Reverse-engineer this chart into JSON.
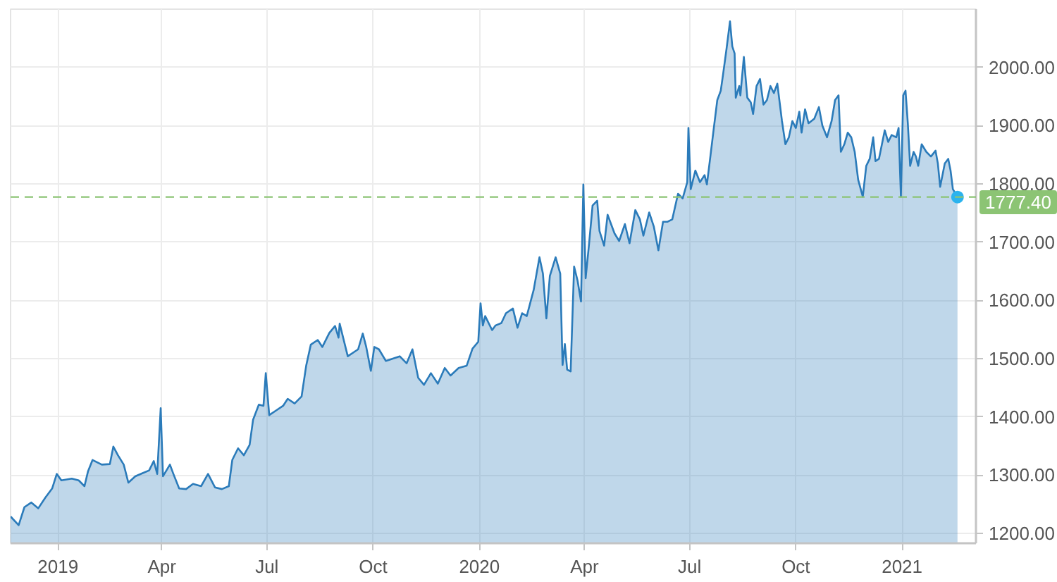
{
  "chart_data": {
    "type": "area",
    "xlim": [
      "2018-11-21",
      "2021-03-06"
    ],
    "ylim": [
      1183,
      2100
    ],
    "xticks": [
      {
        "value": "2019-01-01",
        "label": "2019"
      },
      {
        "value": "2019-04-01",
        "label": "Apr"
      },
      {
        "value": "2019-07-01",
        "label": "Jul"
      },
      {
        "value": "2019-10-01",
        "label": "Oct"
      },
      {
        "value": "2020-01-01",
        "label": "2020"
      },
      {
        "value": "2020-04-01",
        "label": "Apr"
      },
      {
        "value": "2020-07-01",
        "label": "Jul"
      },
      {
        "value": "2020-10-01",
        "label": "Oct"
      },
      {
        "value": "2021-01-01",
        "label": "2021"
      }
    ],
    "yticks": [
      {
        "value": 1200,
        "label": "1200.00"
      },
      {
        "value": 1300,
        "label": "1300.00"
      },
      {
        "value": 1400,
        "label": "1400.00"
      },
      {
        "value": 1500,
        "label": "1500.00"
      },
      {
        "value": 1600,
        "label": "1600.00"
      },
      {
        "value": 1700,
        "label": "1700.00"
      },
      {
        "value": 1800,
        "label": "1800.00"
      },
      {
        "value": 1900,
        "label": "1900.00"
      },
      {
        "value": 2000,
        "label": "2000.00"
      }
    ],
    "grid": true,
    "x": [
      "2018-11-21",
      "2018-11-28",
      "2018-12-03",
      "2018-12-09",
      "2018-12-15",
      "2018-12-21",
      "2018-12-27",
      "2018-12-31",
      "2019-01-04",
      "2019-01-13",
      "2019-01-19",
      "2019-01-24",
      "2019-01-27",
      "2019-01-31",
      "2019-02-08",
      "2019-02-15",
      "2019-02-18",
      "2019-02-22",
      "2019-02-27",
      "2019-03-03",
      "2019-03-09",
      "2019-03-15",
      "2019-03-21",
      "2019-03-25",
      "2019-03-28",
      "2019-03-31",
      "2019-04-02",
      "2019-04-08",
      "2019-04-11",
      "2019-04-16",
      "2019-04-22",
      "2019-04-28",
      "2019-05-05",
      "2019-05-11",
      "2019-05-17",
      "2019-05-23",
      "2019-05-29",
      "2019-06-01",
      "2019-06-06",
      "2019-06-11",
      "2019-06-16",
      "2019-06-19",
      "2019-06-24",
      "2019-06-28",
      "2019-06-30",
      "2019-07-03",
      "2019-07-09",
      "2019-07-15",
      "2019-07-19",
      "2019-07-25",
      "2019-07-31",
      "2019-08-04",
      "2019-08-08",
      "2019-08-14",
      "2019-08-18",
      "2019-08-24",
      "2019-08-29",
      "2019-09-01",
      "2019-09-02",
      "2019-09-09",
      "2019-09-15",
      "2019-09-18",
      "2019-09-22",
      "2019-09-25",
      "2019-09-29",
      "2019-10-02",
      "2019-10-06",
      "2019-10-12",
      "2019-10-18",
      "2019-10-24",
      "2019-10-30",
      "2019-11-04",
      "2019-11-09",
      "2019-11-14",
      "2019-11-20",
      "2019-11-26",
      "2019-12-02",
      "2019-12-07",
      "2019-12-14",
      "2019-12-21",
      "2019-12-26",
      "2019-12-31",
      "2020-01-02",
      "2020-01-04",
      "2020-01-06",
      "2020-01-12",
      "2020-01-15",
      "2020-01-20",
      "2020-01-24",
      "2020-01-30",
      "2020-02-03",
      "2020-02-07",
      "2020-02-11",
      "2020-02-17",
      "2020-02-22",
      "2020-02-25",
      "2020-02-28",
      "2020-03-02",
      "2020-03-07",
      "2020-03-11",
      "2020-03-13",
      "2020-03-15",
      "2020-03-17",
      "2020-03-20",
      "2020-03-23",
      "2020-03-26",
      "2020-03-29",
      "2020-03-31",
      "2020-04-02",
      "2020-04-05",
      "2020-04-08",
      "2020-04-12",
      "2020-04-14",
      "2020-04-18",
      "2020-04-21",
      "2020-04-27",
      "2020-05-01",
      "2020-05-06",
      "2020-05-10",
      "2020-05-15",
      "2020-05-19",
      "2020-05-22",
      "2020-05-27",
      "2020-05-31",
      "2020-06-04",
      "2020-06-08",
      "2020-06-12",
      "2020-06-16",
      "2020-06-21",
      "2020-06-25",
      "2020-06-29",
      "2020-06-30",
      "2020-07-02",
      "2020-07-06",
      "2020-07-10",
      "2020-07-14",
      "2020-07-16",
      "2020-07-19",
      "2020-07-22",
      "2020-07-25",
      "2020-07-28",
      "2020-07-30",
      "2020-08-02",
      "2020-08-05",
      "2020-08-07",
      "2020-08-09",
      "2020-08-10",
      "2020-08-13",
      "2020-08-14",
      "2020-08-17",
      "2020-08-20",
      "2020-08-23",
      "2020-08-25",
      "2020-08-28",
      "2020-08-31",
      "2020-09-03",
      "2020-09-06",
      "2020-09-09",
      "2020-09-12",
      "2020-09-15",
      "2020-09-17",
      "2020-09-19",
      "2020-09-22",
      "2020-09-25",
      "2020-09-28",
      "2020-10-01",
      "2020-10-04",
      "2020-10-06",
      "2020-10-09",
      "2020-10-12",
      "2020-10-17",
      "2020-10-21",
      "2020-10-24",
      "2020-10-28",
      "2020-11-01",
      "2020-11-04",
      "2020-11-07",
      "2020-11-09",
      "2020-11-12",
      "2020-11-15",
      "2020-11-18",
      "2020-11-21",
      "2020-11-24",
      "2020-11-28",
      "2020-12-01",
      "2020-12-04",
      "2020-12-07",
      "2020-12-09",
      "2020-12-12",
      "2020-12-17",
      "2020-12-20",
      "2020-12-23",
      "2020-12-27",
      "2020-12-29",
      "2020-12-31",
      "2021-01-02",
      "2021-01-04",
      "2021-01-06",
      "2021-01-08",
      "2021-01-11",
      "2021-01-13",
      "2021-01-15",
      "2021-01-18",
      "2021-01-22",
      "2021-01-26",
      "2021-01-30",
      "2021-02-01",
      "2021-02-03",
      "2021-02-07",
      "2021-02-10",
      "2021-02-12",
      "2021-02-14",
      "2021-02-18"
    ],
    "series": [
      {
        "color": "#2b7bba",
        "values": [
          1229,
          1214,
          1245,
          1253,
          1243,
          1261,
          1277,
          1302,
          1291,
          1294,
          1291,
          1281,
          1306,
          1326,
          1318,
          1319,
          1349,
          1334,
          1318,
          1287,
          1298,
          1303,
          1308,
          1324,
          1302,
          1415,
          1298,
          1318,
          1302,
          1277,
          1276,
          1285,
          1281,
          1302,
          1279,
          1276,
          1281,
          1326,
          1346,
          1334,
          1352,
          1395,
          1421,
          1419,
          1475,
          1403,
          1411,
          1419,
          1431,
          1423,
          1435,
          1488,
          1524,
          1532,
          1520,
          1544,
          1556,
          1536,
          1560,
          1504,
          1512,
          1516,
          1543,
          1520,
          1479,
          1520,
          1516,
          1496,
          1500,
          1504,
          1492,
          1516,
          1467,
          1455,
          1475,
          1457,
          1484,
          1471,
          1484,
          1488,
          1517,
          1529,
          1595,
          1557,
          1573,
          1549,
          1557,
          1561,
          1578,
          1586,
          1553,
          1578,
          1573,
          1618,
          1674,
          1646,
          1569,
          1642,
          1674,
          1646,
          1489,
          1525,
          1481,
          1478,
          1658,
          1634,
          1598,
          1799,
          1638,
          1698,
          1763,
          1771,
          1719,
          1694,
          1747,
          1715,
          1702,
          1731,
          1698,
          1755,
          1739,
          1711,
          1751,
          1727,
          1686,
          1735,
          1735,
          1739,
          1783,
          1775,
          1803,
          1896,
          1791,
          1823,
          1803,
          1815,
          1799,
          1847,
          1896,
          1944,
          1960,
          1988,
          2032,
          2079,
          2036,
          2024,
          1948,
          1968,
          1952,
          2018,
          1948,
          1940,
          1920,
          1968,
          1980,
          1936,
          1944,
          1968,
          1956,
          1972,
          1940,
          1908,
          1868,
          1880,
          1908,
          1896,
          1924,
          1888,
          1928,
          1904,
          1912,
          1932,
          1900,
          1880,
          1908,
          1944,
          1952,
          1855,
          1868,
          1888,
          1880,
          1855,
          1807,
          1778,
          1831,
          1843,
          1880,
          1839,
          1843,
          1892,
          1872,
          1884,
          1880,
          1896,
          1778,
          1952,
          1960,
          1904,
          1831,
          1855,
          1847,
          1831,
          1868,
          1855,
          1847,
          1857,
          1835,
          1795,
          1835,
          1843,
          1823,
          1791,
          1777.4
        ]
      }
    ],
    "ref_lines": [
      {
        "axis": "y",
        "value": 1777.4,
        "label": "1777.40",
        "color": "#8cc474",
        "line_style": "dashed"
      }
    ]
  }
}
